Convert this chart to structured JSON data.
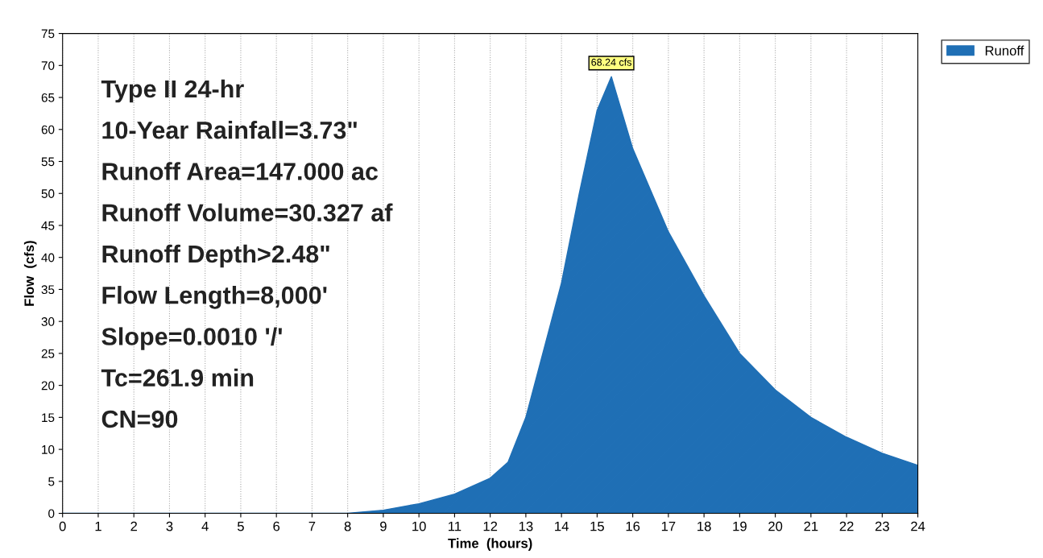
{
  "chart_data": {
    "type": "area",
    "xlabel": "Time  (hours)",
    "ylabel": "Flow  (cfs)",
    "x": [
      0,
      7.5,
      8,
      9,
      10,
      11,
      12,
      12.5,
      13,
      14,
      14.5,
      15,
      15.4,
      16,
      17,
      18,
      19,
      20,
      21,
      22,
      23,
      24
    ],
    "series": [
      {
        "name": "Runoff",
        "color": "#1f6fb5",
        "values": [
          0,
          0,
          0,
          0.5,
          1.5,
          3,
          5.5,
          8,
          15,
          36,
          50,
          63,
          68.24,
          57,
          44,
          34,
          25,
          19.3,
          15,
          11.9,
          9.4,
          7.5
        ]
      }
    ],
    "annotations": [
      {
        "text": "68.24 cfs",
        "x": 15.4,
        "y": 68.24
      },
      "Type II 24-hr",
      "10-Year Rainfall=3.73\"",
      "Runoff Area=147.000 ac",
      "Runoff Volume=30.327 af",
      "Runoff Depth>2.48\"",
      "Flow Length=8,000'",
      "Slope=0.0010 '/'",
      "Tc=261.9 min",
      "CN=90"
    ],
    "xlim": [
      0,
      24
    ],
    "xticks": [
      0,
      1,
      2,
      3,
      4,
      5,
      6,
      7,
      8,
      9,
      10,
      11,
      12,
      13,
      14,
      15,
      16,
      17,
      18,
      19,
      20,
      21,
      22,
      23,
      24
    ],
    "ylim": [
      0,
      75
    ],
    "yticks": [
      0,
      5,
      10,
      15,
      20,
      25,
      30,
      35,
      40,
      45,
      50,
      55,
      60,
      65,
      70,
      75
    ],
    "grid": "x",
    "legend": "top right"
  }
}
